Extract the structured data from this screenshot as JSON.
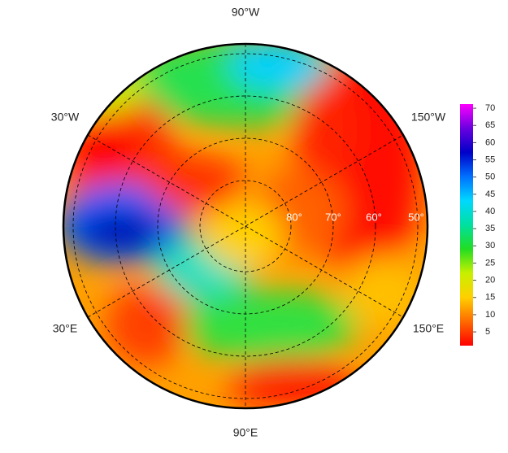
{
  "map": {
    "longitude_labels": [
      "90°W",
      "150°W",
      "30°W",
      "30°E",
      "150°E",
      "90°E"
    ],
    "latitude_labels": [
      "80°",
      "70°",
      "60°",
      "50°"
    ]
  },
  "colorbar": {
    "lim": [
      1,
      71.2
    ],
    "ticks": [
      5,
      10,
      15,
      20,
      25,
      30,
      35,
      40,
      45,
      50,
      55,
      60,
      65,
      70
    ],
    "colors": [
      "#ff0000",
      "#ff6a00",
      "#ffd000",
      "#c8f000",
      "#22dd22",
      "#00e0a0",
      "#00d8ff",
      "#0070ff",
      "#0000c8",
      "#6a00e0",
      "#ff00ff"
    ]
  }
}
